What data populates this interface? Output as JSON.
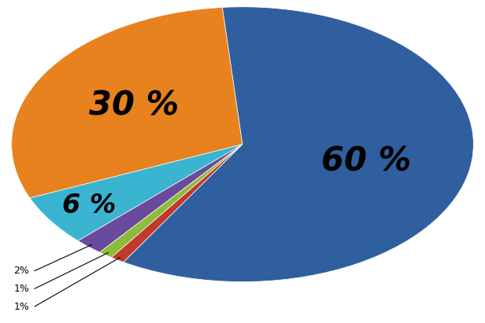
{
  "chart_data": {
    "type": "pie",
    "values": [
      30,
      6,
      2,
      1,
      1,
      60
    ],
    "value_labels": [
      "30 %",
      "6 %",
      "2%",
      "1%",
      "1%",
      "60 %"
    ],
    "colors": [
      "#e8821e",
      "#3ab4d0",
      "#6a4a9c",
      "#8dbb3a",
      "#c0392b",
      "#2f5f9e"
    ],
    "data_labels": true
  }
}
